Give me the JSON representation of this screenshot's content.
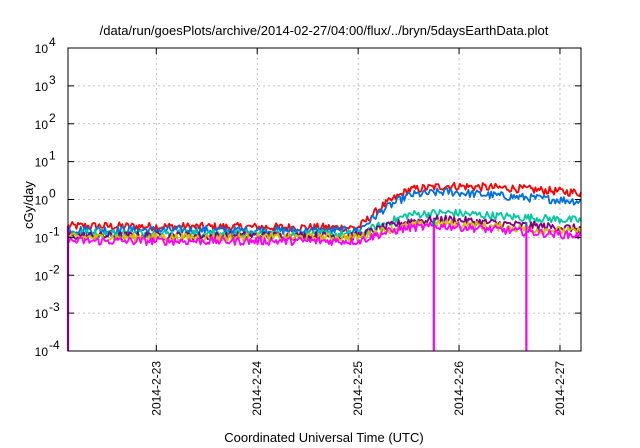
{
  "chart_data": {
    "type": "line",
    "title": "/data/run/goesPlots/archive/2014-02-27/04:00/flux/../bryn/5daysEarthData.plot",
    "xlabel": "Coordinated Universal Time (UTC)",
    "ylabel": "cGy/day",
    "yscale": "log",
    "ylim": [
      0.0001,
      10000
    ],
    "xlim": [
      "2014-02-22 03:00",
      "2014-02-27 05:00"
    ],
    "x_tick_labels": [
      "2014-2-23",
      "2014-2-24",
      "2014-2-25",
      "2014-2-26",
      "2014-2-27"
    ],
    "y_ticks": [
      {
        "value": 0.0001,
        "base": "10",
        "exp": "-4"
      },
      {
        "value": 0.001,
        "base": "10",
        "exp": "-3"
      },
      {
        "value": 0.01,
        "base": "10",
        "exp": "-2"
      },
      {
        "value": 0.1,
        "base": "10",
        "exp": "-1"
      },
      {
        "value": 1,
        "base": "10",
        "exp": "0"
      },
      {
        "value": 10,
        "base": "10",
        "exp": "1"
      },
      {
        "value": 100,
        "base": "10",
        "exp": "2"
      },
      {
        "value": 1000,
        "base": "10",
        "exp": "3"
      },
      {
        "value": 10000,
        "base": "10",
        "exp": "4"
      }
    ],
    "grid": true,
    "series": [
      {
        "color": "#ff0000",
        "points": [
          [
            "2014-02-22 03:00",
            0.2
          ],
          [
            "2014-02-25 00:00",
            0.18
          ],
          [
            "2014-02-25 06:00",
            0.7
          ],
          [
            "2014-02-25 12:00",
            1.8
          ],
          [
            "2014-02-25 21:00",
            2.3
          ],
          [
            "2014-02-26 12:00",
            2.0
          ],
          [
            "2014-02-27 05:00",
            1.5
          ]
        ]
      },
      {
        "color": "#0070e0",
        "points": [
          [
            "2014-02-22 03:00",
            0.16
          ],
          [
            "2014-02-25 00:00",
            0.15
          ],
          [
            "2014-02-25 06:00",
            0.55
          ],
          [
            "2014-02-25 12:00",
            1.3
          ],
          [
            "2014-02-25 21:00",
            1.6
          ],
          [
            "2014-02-26 12:00",
            1.2
          ],
          [
            "2014-02-27 05:00",
            0.9
          ]
        ]
      },
      {
        "color": "#00c8a0",
        "points": [
          [
            "2014-02-22 03:00",
            0.13
          ],
          [
            "2014-02-25 00:00",
            0.12
          ],
          [
            "2014-02-25 06:00",
            0.22
          ],
          [
            "2014-02-25 12:00",
            0.4
          ],
          [
            "2014-02-25 21:00",
            0.45
          ],
          [
            "2014-02-26 12:00",
            0.35
          ],
          [
            "2014-02-27 05:00",
            0.28
          ]
        ]
      },
      {
        "color": "#800080",
        "points": [
          [
            "2014-02-22 03:00",
            0.11
          ],
          [
            "2014-02-25 00:00",
            0.11
          ],
          [
            "2014-02-25 06:00",
            0.18
          ],
          [
            "2014-02-25 12:00",
            0.27
          ],
          [
            "2014-02-25 21:00",
            0.3
          ],
          [
            "2014-02-26 12:00",
            0.22
          ],
          [
            "2014-02-27 05:00",
            0.17
          ]
        ]
      },
      {
        "color": "#d0c000",
        "points": [
          [
            "2014-02-22 03:00",
            0.1
          ],
          [
            "2014-02-25 00:00",
            0.1
          ],
          [
            "2014-02-25 06:00",
            0.15
          ],
          [
            "2014-02-25 12:00",
            0.2
          ],
          [
            "2014-02-25 21:00",
            0.23
          ],
          [
            "2014-02-26 12:00",
            0.18
          ],
          [
            "2014-02-27 05:00",
            0.14
          ]
        ]
      },
      {
        "color": "#ff00ff",
        "points": [
          [
            "2014-02-22 03:00",
            0.08
          ],
          [
            "2014-02-25 00:00",
            0.08
          ],
          [
            "2014-02-25 06:00",
            0.13
          ],
          [
            "2014-02-25 12:00",
            0.18
          ],
          [
            "2014-02-25 21:00",
            0.2
          ],
          [
            "2014-02-26 12:00",
            0.15
          ],
          [
            "2014-02-27 05:00",
            0.11
          ]
        ]
      }
    ],
    "dropouts": [
      {
        "color": "#ff00ff",
        "x": "2014-02-22 03:00",
        "value": 0.0001
      },
      {
        "color": "#ff00ff",
        "x": "2014-02-25 18:00",
        "value": 0.0001
      },
      {
        "color": "#0070e0",
        "x": "2014-02-25 18:00",
        "value": 0.3
      },
      {
        "color": "#ff00ff",
        "x": "2014-02-26 16:00",
        "value": 0.0001
      },
      {
        "color": "#0070e0",
        "x": "2014-02-26 16:00",
        "value": 0.25
      }
    ]
  }
}
